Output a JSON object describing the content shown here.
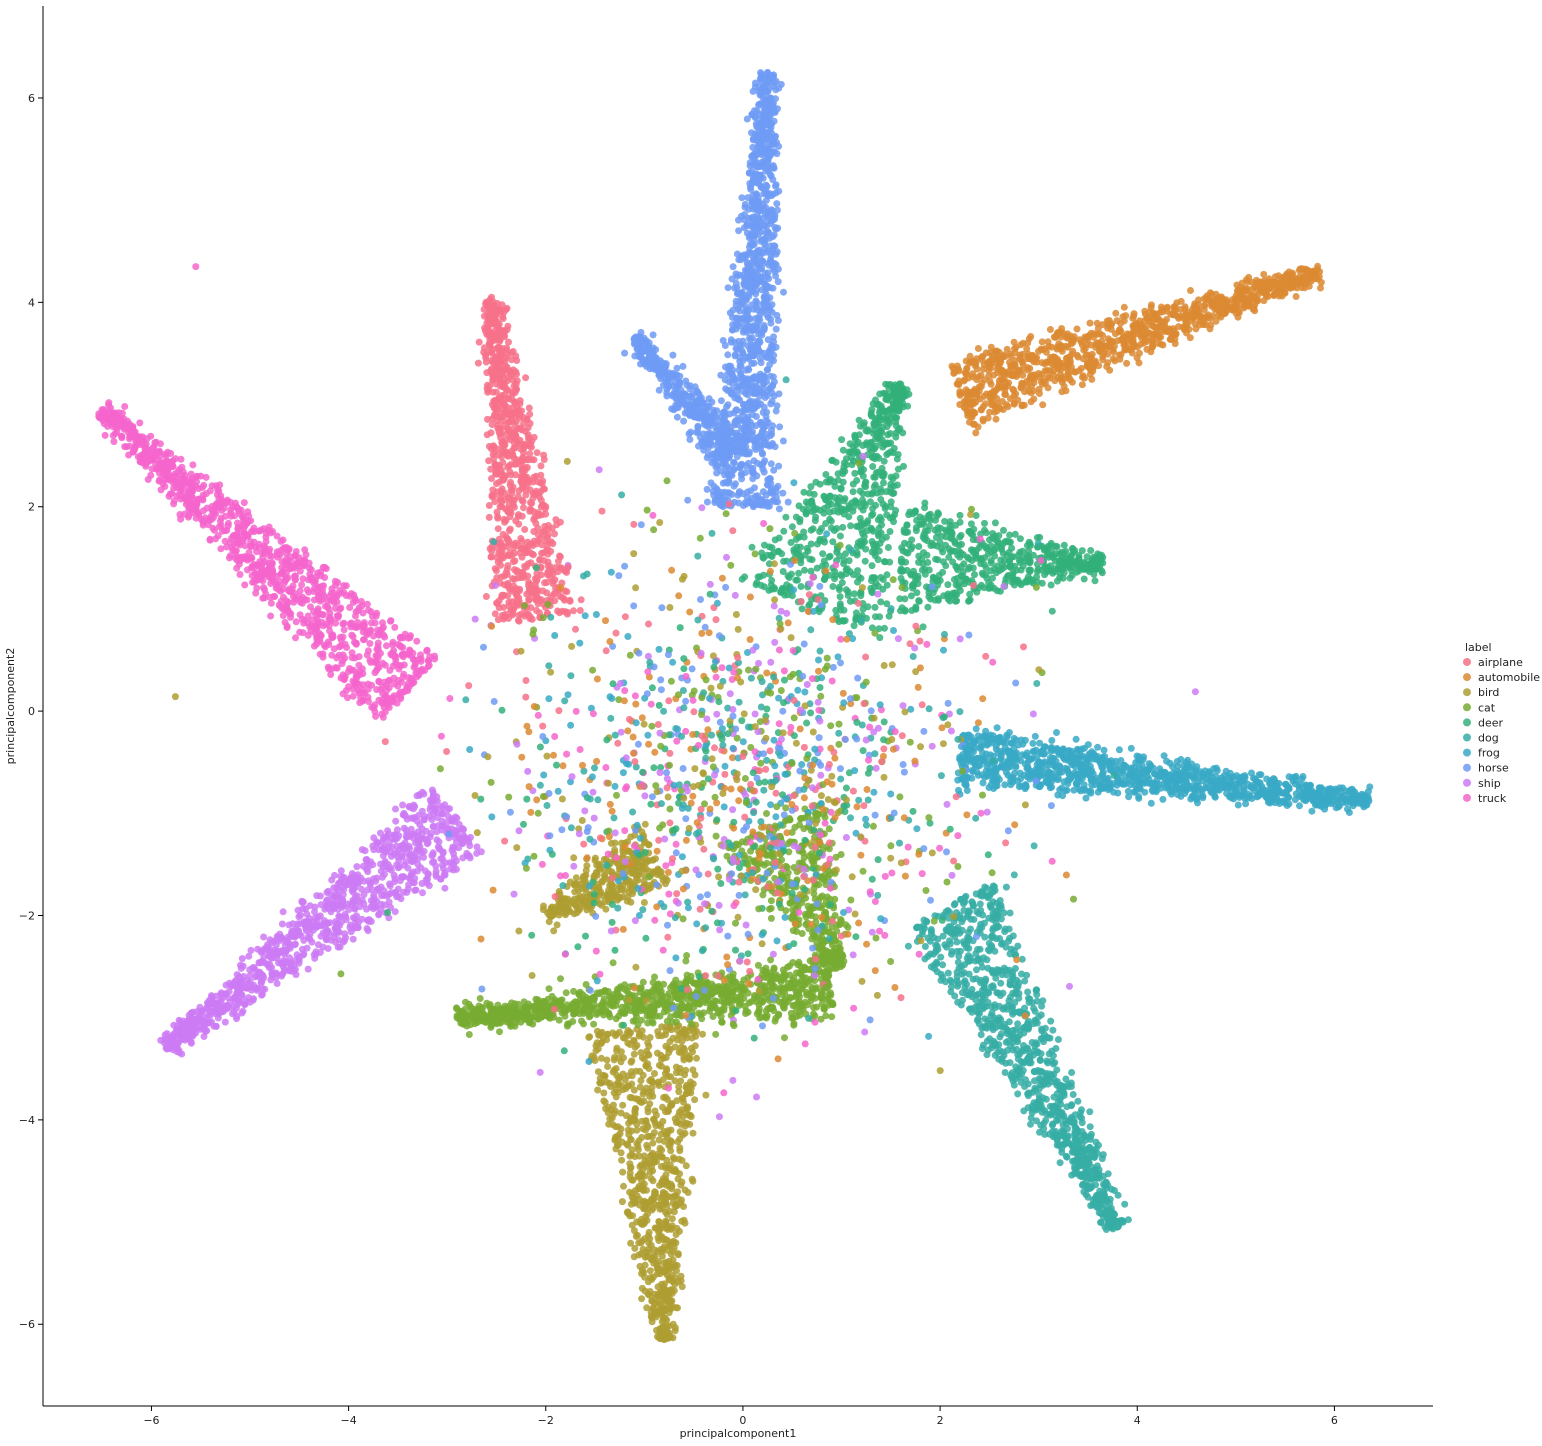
{
  "chart_data": {
    "type": "scatter",
    "xlabel": "principalcomponent1",
    "ylabel": "principalcomponent2",
    "xlim": [
      -7.1,
      7.0
    ],
    "ylim": [
      -6.8,
      6.9
    ],
    "xticks": [
      -6,
      -4,
      -2,
      0,
      2,
      4,
      6
    ],
    "yticks": [
      -6,
      -4,
      -2,
      0,
      2,
      4,
      6
    ],
    "grid": false,
    "legend": {
      "title": "label",
      "placement": "right"
    },
    "series": [
      {
        "name": "airplane",
        "color": "#f77189",
        "arms": [
          {
            "from": [
              -2.1,
              0.9
            ],
            "to": [
              -2.55,
              4.05
            ],
            "width": 0.75
          }
        ],
        "sample_points": [
          [
            -2.55,
            4.05
          ],
          [
            -2.3,
            3.2
          ],
          [
            -2.0,
            2.0
          ],
          [
            -1.9,
            1.2
          ],
          [
            -2.2,
            0.3
          ]
        ]
      },
      {
        "name": "automobile",
        "color": "#dc8932",
        "arms": [
          {
            "from": [
              2.2,
              3.1
            ],
            "to": [
              5.85,
              4.3
            ],
            "width": 0.55
          }
        ],
        "sample_points": [
          [
            5.85,
            4.3
          ],
          [
            4.5,
            3.7
          ],
          [
            3.3,
            3.3
          ],
          [
            2.2,
            3.0
          ]
        ]
      },
      {
        "name": "bird",
        "color": "#ae9d31",
        "arms": [
          {
            "from": [
              -1.0,
              -3.1
            ],
            "to": [
              -0.8,
              -6.15
            ],
            "width": 1.1
          },
          {
            "from": [
              -0.9,
              -1.4
            ],
            "to": [
              -2.0,
              -2.0
            ],
            "width": 0.6
          }
        ],
        "sample_points": [
          [
            -0.8,
            -6.15
          ],
          [
            -1.0,
            -5.0
          ],
          [
            -1.1,
            -4.0
          ],
          [
            -1.2,
            -3.2
          ],
          [
            -2.3,
            -0.3
          ]
        ]
      },
      {
        "name": "cat",
        "color": "#77ab31",
        "arms": [
          {
            "from": [
              0.9,
              -2.7
            ],
            "to": [
              -2.9,
              -3.0
            ],
            "width": 0.45
          },
          {
            "from": [
              0.3,
              -1.1
            ],
            "to": [
              1.0,
              -2.5
            ],
            "width": 1.1
          }
        ],
        "sample_points": [
          [
            -2.9,
            -3.0
          ],
          [
            -1.5,
            -2.6
          ],
          [
            0.0,
            -2.7
          ],
          [
            0.6,
            -1.5
          ],
          [
            0.3,
            -0.5
          ]
        ]
      },
      {
        "name": "deer",
        "color": "#33b07a",
        "arms": [
          {
            "from": [
              0.7,
              1.0
            ],
            "to": [
              1.6,
              3.2
            ],
            "width": 1.5
          },
          {
            "from": [
              1.6,
              1.5
            ],
            "to": [
              3.65,
              1.45
            ],
            "width": 1.0
          }
        ],
        "sample_points": [
          [
            1.6,
            3.2
          ],
          [
            3.65,
            1.45
          ],
          [
            1.5,
            2.0
          ],
          [
            0.6,
            1.0
          ]
        ]
      },
      {
        "name": "dog",
        "color": "#36ada4",
        "arms": [
          {
            "from": [
              2.1,
              -1.9
            ],
            "to": [
              3.8,
              -5.05
            ],
            "width": 0.9
          }
        ],
        "sample_points": [
          [
            3.8,
            -5.05
          ],
          [
            3.2,
            -4.0
          ],
          [
            2.6,
            -3.0
          ],
          [
            2.2,
            -2.0
          ]
        ]
      },
      {
        "name": "frog",
        "color": "#38a9c5",
        "arms": [
          {
            "from": [
              2.2,
              -0.45
            ],
            "to": [
              6.35,
              -0.88
            ],
            "width": 0.45
          }
        ],
        "sample_points": [
          [
            6.35,
            -0.88
          ],
          [
            5.0,
            -0.8
          ],
          [
            3.5,
            -0.6
          ],
          [
            2.2,
            -0.45
          ]
        ]
      },
      {
        "name": "horse",
        "color": "#6e9bf4",
        "arms": [
          {
            "from": [
              0.0,
              2.0
            ],
            "to": [
              0.25,
              6.25
            ],
            "width": 0.6
          },
          {
            "from": [
              -0.1,
              2.5
            ],
            "to": [
              -1.1,
              3.65
            ],
            "width": 0.25
          }
        ],
        "sample_points": [
          [
            0.25,
            6.25
          ],
          [
            0.1,
            5.0
          ],
          [
            0.0,
            3.5
          ],
          [
            -1.1,
            3.65
          ],
          [
            -0.2,
            2.0
          ]
        ]
      },
      {
        "name": "ship",
        "color": "#cc7af4",
        "arms": [
          {
            "from": [
              -2.9,
              -1.05
            ],
            "to": [
              -5.85,
              -3.3
            ],
            "width": 0.75
          }
        ],
        "sample_points": [
          [
            -5.85,
            -3.3
          ],
          [
            -4.8,
            -2.4
          ],
          [
            -4.0,
            -1.7
          ],
          [
            -2.9,
            -1.05
          ]
        ]
      },
      {
        "name": "truck",
        "color": "#f565cc",
        "arms": [
          {
            "from": [
              -3.4,
              0.2
            ],
            "to": [
              -6.5,
              2.95
            ],
            "width": 0.8
          }
        ],
        "sample_points": [
          [
            -6.5,
            2.95
          ],
          [
            -5.5,
            2.3
          ],
          [
            -4.5,
            1.5
          ],
          [
            -3.4,
            0.2
          ],
          [
            -5.55,
            4.35
          ]
        ]
      }
    ]
  }
}
